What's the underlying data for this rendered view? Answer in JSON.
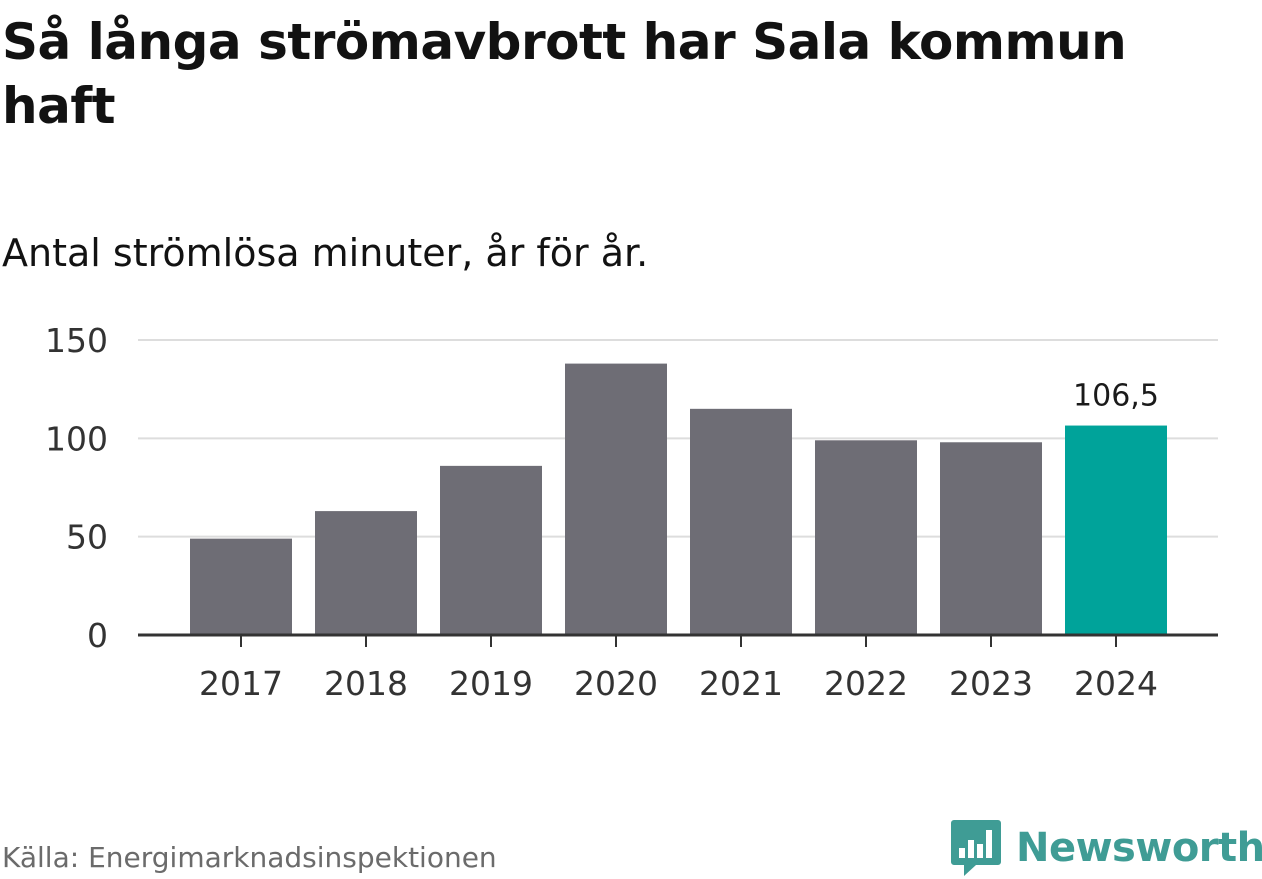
{
  "header": {
    "title": "Så långa strömavbrott har Sala kommun haft",
    "subtitle": "Antal strömlösa minuter, år för år."
  },
  "footer": {
    "source": "Källa: Energimarknadsinspektionen",
    "brand": "Newsworthy",
    "brand_icon": "newsworthy-logo-icon"
  },
  "colors": {
    "bar": "#6e6d75",
    "highlight": "#00a39a",
    "grid": "#dddddd",
    "axis": "#333333",
    "text": "#333333",
    "brand": "#3f9c95"
  },
  "chart_data": {
    "type": "bar",
    "categories": [
      "2017",
      "2018",
      "2019",
      "2020",
      "2021",
      "2022",
      "2023",
      "2024"
    ],
    "values": [
      49,
      63,
      86,
      138,
      115,
      99,
      98,
      106.5
    ],
    "highlight_index": 7,
    "data_labels": [
      {
        "index": 7,
        "text": "106,5"
      }
    ],
    "y_ticks": [
      0,
      50,
      100,
      150
    ],
    "y_tick_labels": [
      "0",
      "50",
      "100",
      "150"
    ],
    "ylim": [
      0,
      150
    ],
    "title": "",
    "xlabel": "",
    "ylabel": "",
    "grid": true,
    "legend": "none"
  }
}
